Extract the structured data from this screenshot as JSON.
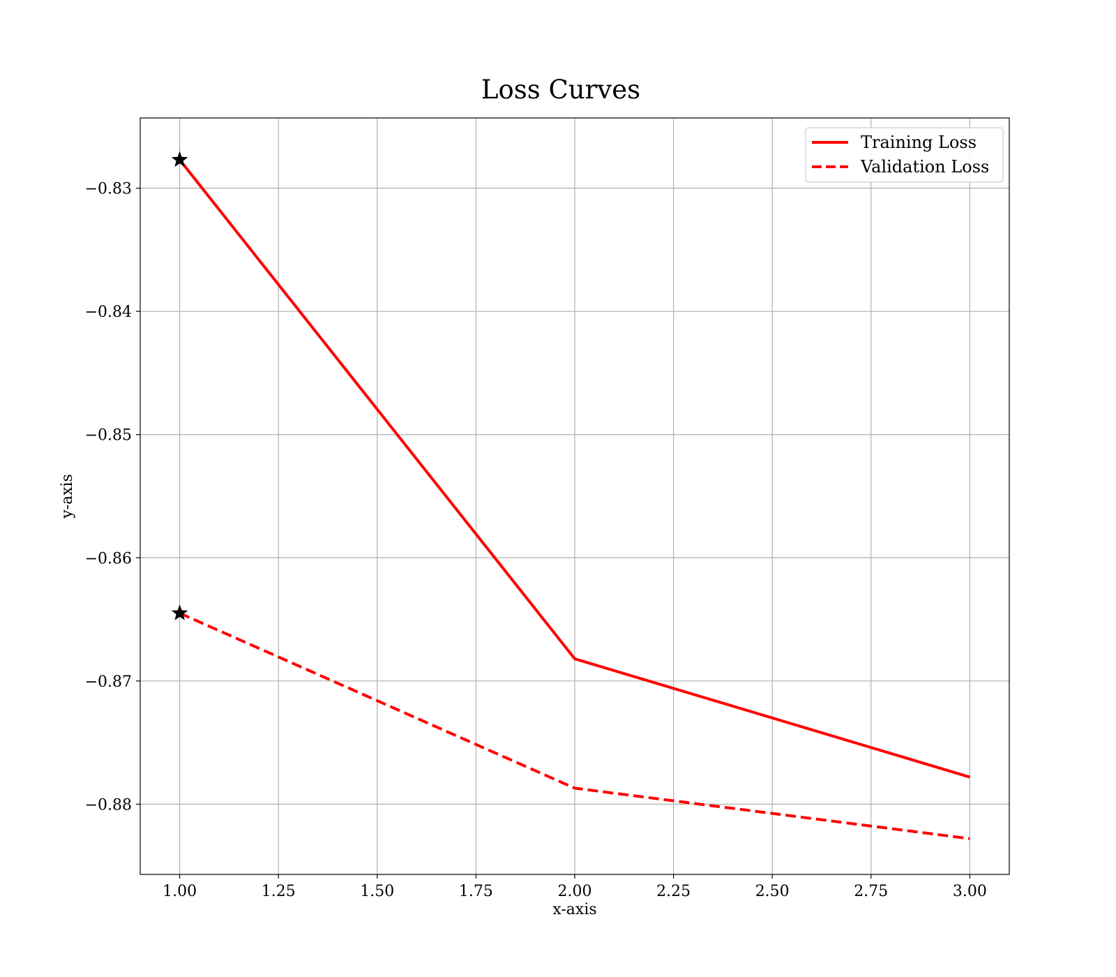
{
  "chart_data": {
    "type": "line",
    "title": "Loss Curves",
    "xlabel": "x-axis",
    "ylabel": "y-axis",
    "xlim": [
      0.9,
      3.1
    ],
    "ylim": [
      -0.8857,
      -0.8243
    ],
    "xticks": [
      1.0,
      1.25,
      1.5,
      1.75,
      2.0,
      2.25,
      2.5,
      2.75,
      3.0
    ],
    "xtick_labels": [
      "1.00",
      "1.25",
      "1.50",
      "1.75",
      "2.00",
      "2.25",
      "2.50",
      "2.75",
      "3.00"
    ],
    "yticks": [
      -0.83,
      -0.84,
      -0.85,
      -0.86,
      -0.87,
      -0.88
    ],
    "ytick_labels": [
      "−0.83",
      "−0.84",
      "−0.85",
      "−0.86",
      "−0.87",
      "−0.88"
    ],
    "grid": true,
    "legend_position": "top-right",
    "series": [
      {
        "name": "Training Loss",
        "color": "#ff0000",
        "linestyle": "solid",
        "x": [
          1,
          2,
          3
        ],
        "y": [
          -0.8277,
          -0.8682,
          -0.8778
        ],
        "start_marker": "star"
      },
      {
        "name": "Validation Loss",
        "color": "#ff0000",
        "linestyle": "dashed",
        "x": [
          1,
          2,
          3
        ],
        "y": [
          -0.8645,
          -0.8787,
          -0.8828
        ],
        "start_marker": "star"
      }
    ]
  }
}
